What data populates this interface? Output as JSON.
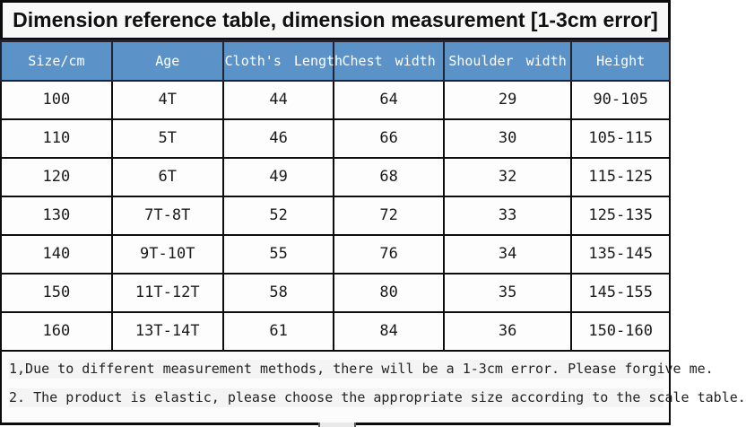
{
  "title": "Dimension reference table, dimension measurement [1-3cm error]",
  "table": {
    "columns": [
      "Size/cm",
      "Age",
      "Cloth's Length",
      "Chest width",
      "Shoulder width",
      "Height"
    ],
    "rows": [
      [
        "100",
        "4T",
        "44",
        "64",
        "29",
        "90-105"
      ],
      [
        "110",
        "5T",
        "46",
        "66",
        "30",
        "105-115"
      ],
      [
        "120",
        "6T",
        "49",
        "68",
        "32",
        "115-125"
      ],
      [
        "130",
        "7T-8T",
        "52",
        "72",
        "33",
        "125-135"
      ],
      [
        "140",
        "9T-10T",
        "55",
        "76",
        "34",
        "135-145"
      ],
      [
        "150",
        "11T-12T",
        "58",
        "80",
        "35",
        "145-155"
      ],
      [
        "160",
        "13T-14T",
        "61",
        "84",
        "36",
        "150-160"
      ]
    ]
  },
  "notes": [
    "1,Due to different measurement methods, there will be a 1-3cm error. Please forgive me.",
    "2. The product is elastic, please choose the appropriate size according to the scale table."
  ],
  "colors": {
    "header_bg": "#5b93c9",
    "header_text": "#ffffff",
    "header_border": "#23232f",
    "grid_border": "#0d0d0d",
    "title_text": "#111111"
  }
}
